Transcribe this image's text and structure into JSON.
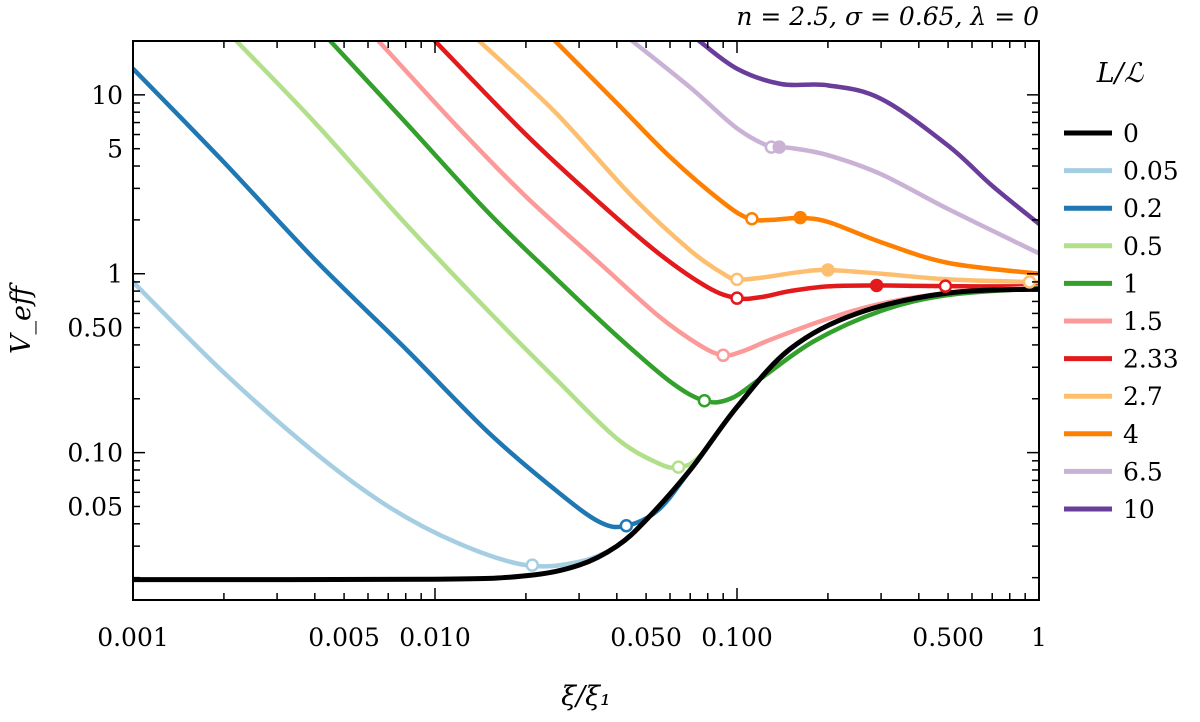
{
  "chart_data": {
    "type": "line",
    "subtitle": "n = 2.5, σ = 0.65, λ = 0",
    "xlabel": "ξ/ξ₁",
    "ylabel": "V_eff",
    "xscale": "log",
    "yscale": "log",
    "xlim": [
      0.001,
      1
    ],
    "ylim": [
      0.015,
      20
    ],
    "x_ticks": [
      {
        "value": 0.001,
        "label": "0.001"
      },
      {
        "value": 0.005,
        "label": "0.005"
      },
      {
        "value": 0.01,
        "label": "0.010"
      },
      {
        "value": 0.05,
        "label": "0.050"
      },
      {
        "value": 0.1,
        "label": "0.100"
      },
      {
        "value": 0.5,
        "label": "0.500"
      },
      {
        "value": 1,
        "label": "1"
      }
    ],
    "y_ticks": [
      {
        "value": 0.05,
        "label": "0.05"
      },
      {
        "value": 0.1,
        "label": "0.10"
      },
      {
        "value": 0.5,
        "label": "0.50"
      },
      {
        "value": 1,
        "label": "1"
      },
      {
        "value": 5,
        "label": "5"
      },
      {
        "value": 10,
        "label": "10"
      }
    ],
    "legend_title": "L/ℒ",
    "legend_position": "right outside",
    "series": [
      {
        "name": "0",
        "color": "#000000",
        "points": [
          [
            0.001,
            0.0195
          ],
          [
            0.01,
            0.0196
          ],
          [
            0.02,
            0.0205
          ],
          [
            0.03,
            0.0235
          ],
          [
            0.04,
            0.03
          ],
          [
            0.05,
            0.042
          ],
          [
            0.07,
            0.08
          ],
          [
            0.1,
            0.18
          ],
          [
            0.15,
            0.38
          ],
          [
            0.25,
            0.6
          ],
          [
            0.5,
            0.78
          ],
          [
            1,
            0.82
          ]
        ],
        "markers": []
      },
      {
        "name": "0.05",
        "color": "#a6cee3",
        "points": [
          [
            0.001,
            0.9
          ],
          [
            0.002,
            0.28
          ],
          [
            0.004,
            0.1
          ],
          [
            0.007,
            0.05
          ],
          [
            0.012,
            0.031
          ],
          [
            0.02,
            0.0235
          ],
          [
            0.03,
            0.0245
          ],
          [
            0.04,
            0.03
          ],
          [
            0.05,
            0.042
          ],
          [
            0.07,
            0.08
          ],
          [
            0.1,
            0.18
          ],
          [
            0.15,
            0.38
          ],
          [
            0.25,
            0.6
          ],
          [
            0.5,
            0.78
          ],
          [
            1,
            0.82
          ]
        ],
        "markers": [
          {
            "x": 0.021,
            "y": 0.0235,
            "filled": false
          }
        ]
      },
      {
        "name": "0.2",
        "color": "#1f78b4",
        "points": [
          [
            0.001,
            14
          ],
          [
            0.002,
            4.2
          ],
          [
            0.004,
            1.2
          ],
          [
            0.008,
            0.38
          ],
          [
            0.015,
            0.13
          ],
          [
            0.025,
            0.062
          ],
          [
            0.035,
            0.041
          ],
          [
            0.043,
            0.039
          ],
          [
            0.055,
            0.048
          ],
          [
            0.07,
            0.08
          ],
          [
            0.1,
            0.18
          ],
          [
            0.15,
            0.38
          ],
          [
            0.25,
            0.6
          ],
          [
            0.5,
            0.78
          ],
          [
            1,
            0.82
          ]
        ],
        "markers": [
          {
            "x": 0.043,
            "y": 0.039,
            "filled": false
          }
        ]
      },
      {
        "name": "0.5",
        "color": "#b2df8a",
        "points": [
          [
            0.0022,
            20
          ],
          [
            0.004,
            7
          ],
          [
            0.008,
            1.9
          ],
          [
            0.015,
            0.62
          ],
          [
            0.025,
            0.26
          ],
          [
            0.04,
            0.12
          ],
          [
            0.055,
            0.087
          ],
          [
            0.064,
            0.083
          ],
          [
            0.075,
            0.095
          ],
          [
            0.1,
            0.18
          ],
          [
            0.15,
            0.38
          ],
          [
            0.25,
            0.6
          ],
          [
            0.5,
            0.78
          ],
          [
            1,
            0.82
          ]
        ],
        "markers": [
          {
            "x": 0.064,
            "y": 0.083,
            "filled": false
          }
        ]
      },
      {
        "name": "1",
        "color": "#33a02c",
        "points": [
          [
            0.0045,
            20
          ],
          [
            0.008,
            7
          ],
          [
            0.015,
            2.2
          ],
          [
            0.025,
            0.95
          ],
          [
            0.04,
            0.45
          ],
          [
            0.06,
            0.25
          ],
          [
            0.078,
            0.195
          ],
          [
            0.095,
            0.2
          ],
          [
            0.12,
            0.26
          ],
          [
            0.18,
            0.42
          ],
          [
            0.3,
            0.62
          ],
          [
            0.5,
            0.76
          ],
          [
            1,
            0.83
          ]
        ],
        "markers": [
          {
            "x": 0.078,
            "y": 0.195,
            "filled": false
          }
        ]
      },
      {
        "name": "1.5",
        "color": "#fb9a99",
        "points": [
          [
            0.0065,
            20
          ],
          [
            0.012,
            6.5
          ],
          [
            0.02,
            2.7
          ],
          [
            0.035,
            1.15
          ],
          [
            0.055,
            0.58
          ],
          [
            0.075,
            0.4
          ],
          [
            0.09,
            0.35
          ],
          [
            0.105,
            0.37
          ],
          [
            0.13,
            0.43
          ],
          [
            0.2,
            0.56
          ],
          [
            0.3,
            0.68
          ],
          [
            0.5,
            0.78
          ],
          [
            1,
            0.84
          ]
        ],
        "markers": [
          {
            "x": 0.09,
            "y": 0.35,
            "filled": false
          }
        ]
      },
      {
        "name": "2.33",
        "color": "#e31a1c",
        "points": [
          [
            0.01,
            20
          ],
          [
            0.02,
            6
          ],
          [
            0.035,
            2.5
          ],
          [
            0.055,
            1.3
          ],
          [
            0.08,
            0.84
          ],
          [
            0.1,
            0.73
          ],
          [
            0.12,
            0.74
          ],
          [
            0.15,
            0.8
          ],
          [
            0.2,
            0.85
          ],
          [
            0.29,
            0.86
          ],
          [
            0.4,
            0.855
          ],
          [
            0.49,
            0.852
          ],
          [
            0.7,
            0.85
          ],
          [
            1,
            0.85
          ]
        ],
        "markers": [
          {
            "x": 0.1,
            "y": 0.73,
            "filled": false
          },
          {
            "x": 0.29,
            "y": 0.86,
            "filled": true
          },
          {
            "x": 0.49,
            "y": 0.852,
            "filled": false
          }
        ]
      },
      {
        "name": "2.7",
        "color": "#fdbf6f",
        "points": [
          [
            0.014,
            20
          ],
          [
            0.025,
            8
          ],
          [
            0.045,
            2.7
          ],
          [
            0.07,
            1.35
          ],
          [
            0.09,
            1.0
          ],
          [
            0.1,
            0.93
          ],
          [
            0.12,
            0.95
          ],
          [
            0.16,
            1.02
          ],
          [
            0.2,
            1.05
          ],
          [
            0.3,
            1.0
          ],
          [
            0.5,
            0.93
          ],
          [
            0.93,
            0.9
          ],
          [
            1,
            0.9
          ]
        ],
        "markers": [
          {
            "x": 0.1,
            "y": 0.93,
            "filled": false
          },
          {
            "x": 0.2,
            "y": 1.05,
            "filled": true
          },
          {
            "x": 0.93,
            "y": 0.9,
            "filled": false
          }
        ]
      },
      {
        "name": "4",
        "color": "#ff7f00",
        "points": [
          [
            0.025,
            20
          ],
          [
            0.04,
            9
          ],
          [
            0.06,
            4.5
          ],
          [
            0.09,
            2.5
          ],
          [
            0.11,
            2.03
          ],
          [
            0.13,
            2.0
          ],
          [
            0.16,
            2.05
          ],
          [
            0.2,
            1.95
          ],
          [
            0.3,
            1.5
          ],
          [
            0.5,
            1.15
          ],
          [
            1,
            1.0
          ]
        ],
        "markers": [
          {
            "x": 0.112,
            "y": 2.03,
            "filled": false
          },
          {
            "x": 0.162,
            "y": 2.06,
            "filled": true
          }
        ]
      },
      {
        "name": "6.5",
        "color": "#cab2d6",
        "points": [
          [
            0.045,
            20
          ],
          [
            0.07,
            11
          ],
          [
            0.1,
            6.5
          ],
          [
            0.13,
            5.1
          ],
          [
            0.15,
            5.05
          ],
          [
            0.2,
            4.6
          ],
          [
            0.3,
            3.6
          ],
          [
            0.5,
            2.3
          ],
          [
            1,
            1.3
          ]
        ],
        "markers": [
          {
            "x": 0.13,
            "y": 5.1,
            "filled": false
          },
          {
            "x": 0.138,
            "y": 5.1,
            "filled": true
          }
        ]
      },
      {
        "name": "10",
        "color": "#6a3d9a",
        "points": [
          [
            0.075,
            20
          ],
          [
            0.1,
            14
          ],
          [
            0.14,
            11.5
          ],
          [
            0.2,
            11.3
          ],
          [
            0.3,
            9.5
          ],
          [
            0.5,
            5.2
          ],
          [
            0.7,
            3.1
          ],
          [
            1,
            1.9
          ]
        ],
        "markers": []
      }
    ]
  }
}
